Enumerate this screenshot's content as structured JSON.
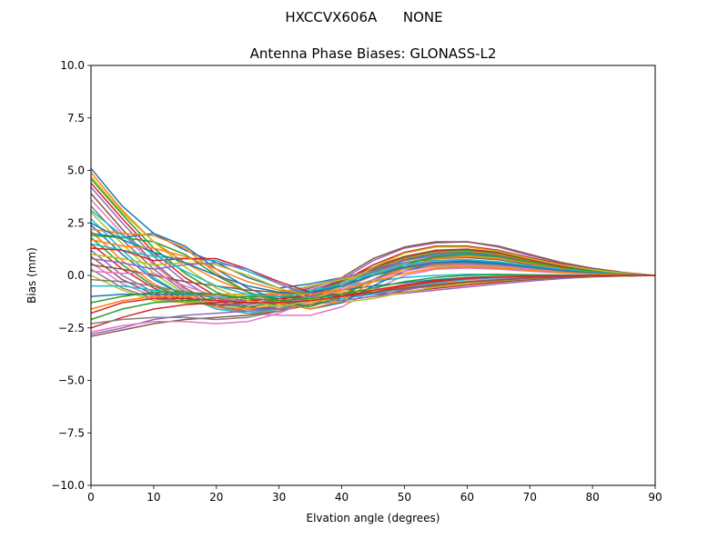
{
  "figure": {
    "suptitle": "HXCCVX606A      NONE"
  },
  "chart_data": {
    "type": "line",
    "title": "Antenna Phase Biases: GLONASS-L2",
    "xlabel": "Elvation angle (degrees)",
    "ylabel": "Bias (mm)",
    "xlim": [
      0,
      90
    ],
    "ylim": [
      -10,
      10
    ],
    "x_ticks": [
      "0",
      "10",
      "20",
      "30",
      "40",
      "50",
      "60",
      "70",
      "80",
      "90"
    ],
    "y_ticks": [
      "−10.0",
      "−7.5",
      "−5.0",
      "−2.5",
      "0.0",
      "2.5",
      "5.0",
      "7.5",
      "10.0"
    ],
    "grid": false,
    "legend": "none",
    "x": [
      0,
      5,
      10,
      15,
      20,
      25,
      30,
      35,
      40,
      45,
      50,
      55,
      60,
      65,
      70,
      75,
      80,
      85,
      90
    ],
    "colors": [
      "#1f77b4",
      "#ff7f0e",
      "#2ca02c",
      "#d62728",
      "#9467bd",
      "#8c564b",
      "#e377c2",
      "#7f7f7f",
      "#bcbd22",
      "#17becf"
    ],
    "series": [
      {
        "values": [
          5.1,
          3.3,
          2.0,
          1.2,
          0.6,
          -0.1,
          -0.6,
          -0.4,
          -0.1,
          0.2,
          0.5,
          0.6,
          0.55,
          0.45,
          0.3,
          0.18,
          0.1,
          0.05,
          0.0
        ]
      },
      {
        "values": [
          4.9,
          3.1,
          1.6,
          0.6,
          -0.2,
          -0.8,
          -1.2,
          -1.3,
          -0.9,
          -0.2,
          0.3,
          0.5,
          0.5,
          0.4,
          0.28,
          0.16,
          0.09,
          0.04,
          0.0
        ]
      },
      {
        "values": [
          4.6,
          2.9,
          1.3,
          0.1,
          -0.8,
          -1.3,
          -1.4,
          -1.2,
          -0.6,
          0.3,
          0.9,
          1.2,
          1.2,
          1.0,
          0.7,
          0.45,
          0.25,
          0.1,
          0.0
        ]
      },
      {
        "values": [
          4.4,
          2.7,
          1.1,
          -0.1,
          -1.0,
          -1.5,
          -1.6,
          -1.1,
          -0.3,
          0.5,
          1.1,
          1.4,
          1.4,
          1.2,
          0.85,
          0.55,
          0.3,
          0.12,
          0.0
        ]
      },
      {
        "values": [
          4.2,
          2.5,
          0.9,
          -0.3,
          -1.2,
          -1.6,
          -1.6,
          -1.0,
          -0.2,
          0.7,
          1.3,
          1.55,
          1.6,
          1.35,
          0.95,
          0.6,
          0.32,
          0.13,
          0.0
        ]
      },
      {
        "values": [
          3.9,
          2.2,
          0.6,
          -0.6,
          -1.4,
          -1.8,
          -1.7,
          -1.1,
          -0.1,
          0.8,
          1.35,
          1.6,
          1.6,
          1.4,
          1.0,
          0.62,
          0.34,
          0.14,
          0.0
        ]
      },
      {
        "values": [
          3.6,
          2.0,
          0.5,
          -0.7,
          -1.5,
          -1.8,
          -1.9,
          -1.9,
          -1.5,
          -0.7,
          0.0,
          0.3,
          0.35,
          0.3,
          0.2,
          0.12,
          0.07,
          0.03,
          0.0
        ]
      },
      {
        "values": [
          3.3,
          1.7,
          0.3,
          -0.8,
          -1.5,
          -1.7,
          -1.6,
          -1.4,
          -0.9,
          -0.2,
          0.4,
          0.7,
          0.75,
          0.6,
          0.42,
          0.25,
          0.13,
          0.05,
          0.0
        ]
      },
      {
        "values": [
          3.0,
          1.5,
          0.1,
          -0.9,
          -1.6,
          -1.8,
          -1.7,
          -1.3,
          -0.7,
          0.0,
          0.6,
          0.9,
          0.95,
          0.8,
          0.55,
          0.32,
          0.17,
          0.07,
          0.0
        ]
      },
      {
        "values": [
          2.7,
          1.2,
          -0.1,
          -1.0,
          -1.6,
          -1.8,
          -1.6,
          -1.2,
          -0.6,
          0.1,
          0.7,
          1.0,
          1.05,
          0.9,
          0.6,
          0.36,
          0.19,
          0.08,
          0.0
        ]
      },
      {
        "values": [
          2.4,
          1.0,
          -0.2,
          -1.0,
          -1.5,
          -1.6,
          -1.5,
          -1.1,
          -0.5,
          0.2,
          0.75,
          1.05,
          1.1,
          0.95,
          0.65,
          0.38,
          0.2,
          0.08,
          0.0
        ]
      },
      {
        "values": [
          2.1,
          0.7,
          -0.4,
          -1.1,
          -1.5,
          -1.6,
          -1.4,
          -1.0,
          -0.4,
          0.3,
          0.8,
          1.1,
          1.15,
          1.0,
          0.7,
          0.4,
          0.21,
          0.09,
          0.0
        ]
      },
      {
        "values": [
          1.8,
          0.5,
          -0.5,
          -1.1,
          -1.4,
          -1.5,
          -1.3,
          -0.9,
          -0.3,
          0.35,
          0.85,
          1.15,
          1.2,
          1.05,
          0.72,
          0.42,
          0.22,
          0.09,
          0.0
        ]
      },
      {
        "values": [
          1.5,
          0.3,
          -0.6,
          -1.2,
          -1.4,
          -1.4,
          -1.2,
          -0.8,
          -0.25,
          0.4,
          0.9,
          1.2,
          1.25,
          1.1,
          0.75,
          0.44,
          0.23,
          0.1,
          0.0
        ]
      },
      {
        "values": [
          1.2,
          0.0,
          -0.8,
          -1.2,
          -1.4,
          -1.4,
          -1.1,
          -0.7,
          -0.2,
          0.3,
          0.7,
          0.95,
          1.0,
          0.9,
          0.62,
          0.36,
          0.19,
          0.08,
          0.0
        ]
      },
      {
        "values": [
          0.9,
          -0.2,
          -0.9,
          -1.3,
          -1.4,
          -1.3,
          -1.0,
          -0.6,
          -0.1,
          0.25,
          0.6,
          0.8,
          0.85,
          0.75,
          0.52,
          0.3,
          0.16,
          0.07,
          0.0
        ]
      },
      {
        "values": [
          0.6,
          -0.4,
          -1.0,
          -1.3,
          -1.3,
          -1.2,
          -0.9,
          -0.55,
          -0.1,
          0.2,
          0.5,
          0.7,
          0.72,
          0.62,
          0.44,
          0.26,
          0.14,
          0.06,
          0.0
        ]
      },
      {
        "values": [
          0.3,
          -0.6,
          -1.1,
          -1.3,
          -1.3,
          -1.1,
          -0.85,
          -0.5,
          -0.15,
          0.15,
          0.4,
          0.55,
          0.58,
          0.5,
          0.36,
          0.22,
          0.12,
          0.05,
          0.0
        ]
      },
      {
        "values": [
          0.0,
          -0.7,
          -1.2,
          -1.3,
          -1.2,
          -1.0,
          -0.8,
          -0.5,
          -0.2,
          0.1,
          0.3,
          0.42,
          0.45,
          0.4,
          0.3,
          0.18,
          0.1,
          0.04,
          0.0
        ]
      },
      {
        "values": [
          -0.5,
          -0.5,
          -0.7,
          -0.9,
          -1.0,
          -1.0,
          -0.9,
          -0.7,
          -0.5,
          -0.3,
          -0.1,
          0.0,
          0.05,
          0.05,
          0.03,
          0.02,
          0.01,
          0.0,
          0.0
        ]
      },
      {
        "values": [
          -1.0,
          -0.9,
          -0.9,
          -0.9,
          -0.9,
          -0.9,
          -0.9,
          -0.8,
          -0.7,
          -0.5,
          -0.35,
          -0.2,
          -0.1,
          -0.05,
          -0.03,
          -0.02,
          -0.01,
          0.0,
          0.0
        ]
      },
      {
        "values": [
          -1.6,
          -1.2,
          -1.0,
          -1.0,
          -0.9,
          -0.9,
          -0.9,
          -0.9,
          -0.8,
          -0.7,
          -0.55,
          -0.4,
          -0.28,
          -0.18,
          -0.1,
          -0.06,
          -0.03,
          -0.01,
          0.0
        ]
      },
      {
        "values": [
          -2.1,
          -1.6,
          -1.3,
          -1.2,
          -1.1,
          -1.0,
          -1.0,
          -1.0,
          -0.9,
          -0.8,
          -0.65,
          -0.5,
          -0.36,
          -0.24,
          -0.14,
          -0.08,
          -0.04,
          -0.02,
          0.0
        ]
      },
      {
        "values": [
          -2.5,
          -2.0,
          -1.6,
          -1.4,
          -1.3,
          -1.2,
          -1.1,
          -1.0,
          -1.0,
          -0.9,
          -0.78,
          -0.62,
          -0.46,
          -0.32,
          -0.2,
          -0.11,
          -0.05,
          -0.02,
          0.0
        ]
      },
      {
        "values": [
          -2.8,
          -2.5,
          -2.1,
          -1.9,
          -1.8,
          -1.7,
          -1.6,
          -1.4,
          -1.2,
          -1.0,
          -0.85,
          -0.7,
          -0.55,
          -0.4,
          -0.27,
          -0.15,
          -0.07,
          -0.03,
          0.0
        ]
      },
      {
        "values": [
          -2.9,
          -2.6,
          -2.3,
          -2.1,
          -2.0,
          -1.9,
          -1.7,
          -1.4,
          -1.1,
          -0.85,
          -0.65,
          -0.5,
          -0.38,
          -0.27,
          -0.18,
          -0.1,
          -0.05,
          -0.02,
          0.0
        ]
      },
      {
        "values": [
          -2.7,
          -2.4,
          -2.2,
          -2.2,
          -2.3,
          -2.2,
          -1.8,
          -1.2,
          -0.6,
          0.0,
          0.4,
          0.65,
          0.7,
          0.6,
          0.42,
          0.25,
          0.13,
          0.05,
          0.0
        ]
      },
      {
        "values": [
          -2.3,
          -2.1,
          -2.0,
          -2.0,
          -2.1,
          -2.0,
          -1.7,
          -1.1,
          -0.4,
          0.2,
          0.6,
          0.85,
          0.9,
          0.78,
          0.55,
          0.32,
          0.16,
          0.06,
          0.0
        ]
      },
      {
        "values": [
          1.0,
          0.8,
          0.5,
          0.6,
          0.5,
          0.0,
          -0.6,
          -1.1,
          -1.3,
          -1.1,
          -0.8,
          -0.55,
          -0.38,
          -0.25,
          -0.15,
          -0.08,
          -0.04,
          -0.02,
          0.0
        ]
      },
      {
        "values": [
          1.5,
          1.2,
          0.9,
          0.8,
          0.7,
          0.2,
          -0.4,
          -0.9,
          -1.1,
          -0.9,
          -0.6,
          -0.35,
          -0.2,
          -0.12,
          -0.07,
          -0.04,
          -0.02,
          -0.01,
          0.0
        ]
      },
      {
        "values": [
          2.0,
          1.8,
          2.0,
          1.4,
          0.3,
          -0.6,
          -1.2,
          -1.6,
          -1.3,
          -0.5,
          0.2,
          0.6,
          0.7,
          0.62,
          0.45,
          0.27,
          0.14,
          0.06,
          0.0
        ]
      },
      {
        "values": [
          2.2,
          2.0,
          1.9,
          1.3,
          0.1,
          -0.8,
          -1.3,
          -1.6,
          -1.2,
          -0.3,
          0.4,
          0.8,
          0.9,
          0.8,
          0.58,
          0.35,
          0.18,
          0.07,
          0.0
        ]
      },
      {
        "values": [
          1.9,
          1.8,
          1.6,
          1.0,
          0.0,
          -0.8,
          -1.2,
          -1.5,
          -1.0,
          -0.2,
          0.5,
          0.9,
          1.0,
          0.88,
          0.64,
          0.38,
          0.2,
          0.08,
          0.0
        ]
      },
      {
        "values": [
          1.3,
          1.2,
          0.7,
          0.8,
          0.8,
          0.3,
          -0.3,
          -0.8,
          -1.0,
          -0.8,
          -0.5,
          -0.3,
          -0.15,
          -0.08,
          -0.05,
          -0.03,
          -0.01,
          0.0,
          0.0
        ]
      },
      {
        "values": [
          0.8,
          0.6,
          0.3,
          0.5,
          0.6,
          0.3,
          -0.4,
          -1.0,
          -1.2,
          -1.0,
          -0.7,
          -0.45,
          -0.3,
          -0.2,
          -0.12,
          -0.07,
          -0.03,
          -0.01,
          0.0
        ]
      },
      {
        "values": [
          0.5,
          0.3,
          0.0,
          -0.3,
          -0.5,
          -0.7,
          -0.8,
          -0.9,
          -0.9,
          -0.8,
          -0.6,
          -0.45,
          -0.32,
          -0.22,
          -0.13,
          -0.07,
          -0.03,
          -0.01,
          0.0
        ]
      },
      {
        "values": [
          0.2,
          0.1,
          0.1,
          -0.5,
          -1.0,
          -1.3,
          -1.3,
          -1.1,
          -0.7,
          -0.2,
          0.2,
          0.45,
          0.5,
          0.45,
          0.32,
          0.19,
          0.1,
          0.04,
          0.0
        ]
      },
      {
        "values": [
          -0.2,
          -0.3,
          -0.5,
          -0.8,
          -1.1,
          -1.3,
          -1.3,
          -1.0,
          -0.5,
          0.0,
          0.35,
          0.55,
          0.6,
          0.52,
          0.37,
          0.22,
          0.11,
          0.04,
          0.0
        ]
      },
      {
        "values": [
          4.7,
          3.0,
          1.6,
          0.4,
          -0.6,
          -1.2,
          -1.5,
          -1.2,
          -0.5,
          0.4,
          1.05,
          1.35,
          1.35,
          1.15,
          0.8,
          0.5,
          0.27,
          0.11,
          0.0
        ]
      },
      {
        "values": [
          3.1,
          1.9,
          1.0,
          0.2,
          -0.5,
          -0.9,
          -1.0,
          -0.8,
          -0.4,
          0.1,
          0.5,
          0.72,
          0.75,
          0.65,
          0.46,
          0.28,
          0.15,
          0.06,
          0.0
        ]
      },
      {
        "values": [
          2.5,
          1.7,
          1.1,
          0.6,
          0.0,
          -0.5,
          -0.8,
          -0.8,
          -0.5,
          0.0,
          0.4,
          0.62,
          0.65,
          0.56,
          0.4,
          0.24,
          0.12,
          0.05,
          0.0
        ]
      },
      {
        "values": [
          1.7,
          1.4,
          1.3,
          0.9,
          0.3,
          -0.3,
          -0.7,
          -0.9,
          -0.7,
          -0.3,
          0.1,
          0.35,
          0.4,
          0.35,
          0.25,
          0.15,
          0.08,
          0.03,
          0.0
        ]
      },
      {
        "values": [
          -1.3,
          -1.0,
          -0.8,
          -0.8,
          -0.9,
          -1.1,
          -1.2,
          -1.1,
          -0.9,
          -0.6,
          -0.3,
          -0.1,
          0.0,
          0.03,
          0.02,
          0.01,
          0.0,
          0.0,
          0.0
        ]
      },
      {
        "values": [
          -1.8,
          -1.3,
          -1.1,
          -1.1,
          -1.2,
          -1.3,
          -1.3,
          -1.2,
          -1.0,
          -0.7,
          -0.45,
          -0.25,
          -0.12,
          -0.06,
          -0.03,
          -0.02,
          -0.01,
          0.0,
          0.0
        ]
      }
    ]
  }
}
